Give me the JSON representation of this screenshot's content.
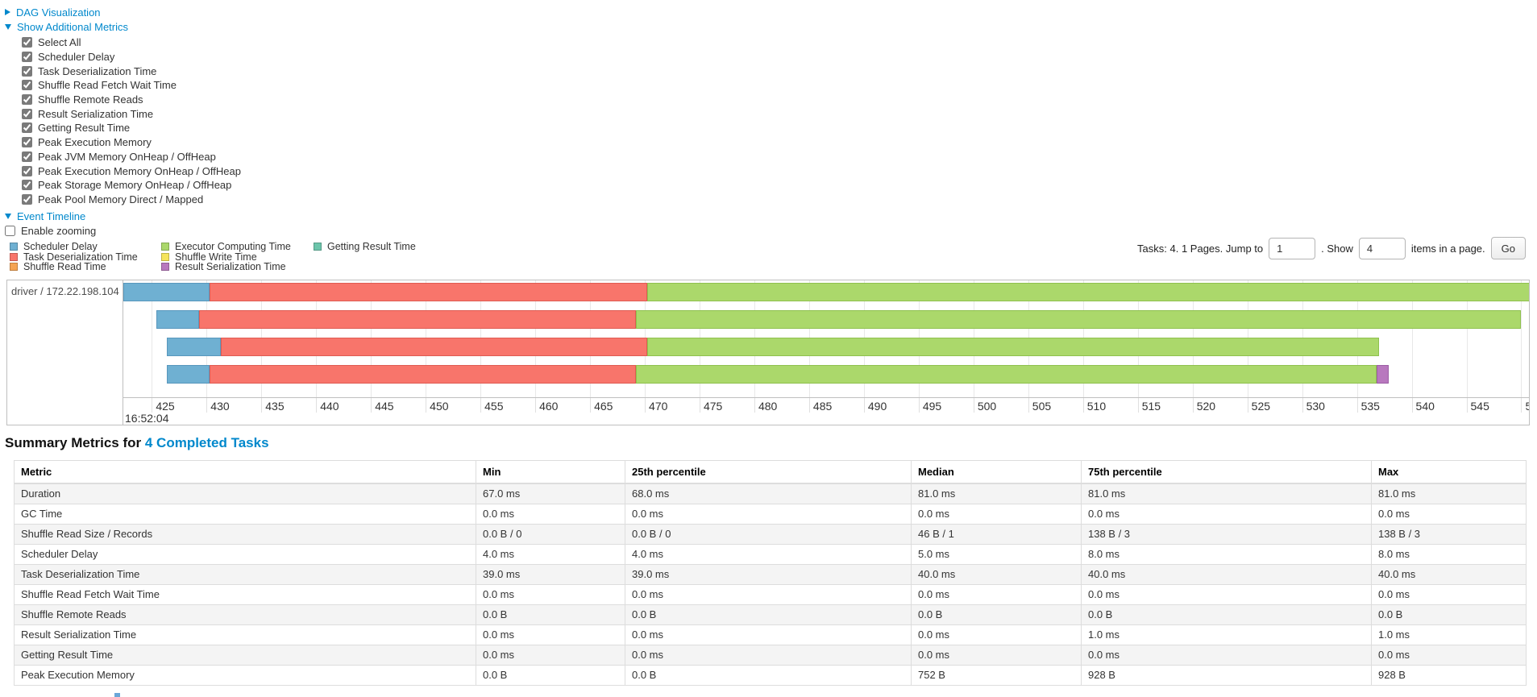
{
  "controls": {
    "dag_label": "DAG Visualization",
    "metrics_label": "Show Additional Metrics",
    "checkboxes": [
      {
        "label": "Select All",
        "checked": true
      },
      {
        "label": "Scheduler Delay",
        "checked": true
      },
      {
        "label": "Task Deserialization Time",
        "checked": true
      },
      {
        "label": "Shuffle Read Fetch Wait Time",
        "checked": true
      },
      {
        "label": "Shuffle Remote Reads",
        "checked": true
      },
      {
        "label": "Result Serialization Time",
        "checked": true
      },
      {
        "label": "Getting Result Time",
        "checked": true
      },
      {
        "label": "Peak Execution Memory",
        "checked": true
      },
      {
        "label": "Peak JVM Memory OnHeap / OffHeap",
        "checked": true
      },
      {
        "label": "Peak Execution Memory OnHeap / OffHeap",
        "checked": true
      },
      {
        "label": "Peak Storage Memory OnHeap / OffHeap",
        "checked": true
      },
      {
        "label": "Peak Pool Memory Direct / Mapped",
        "checked": true
      }
    ],
    "event_timeline_label": "Event Timeline",
    "enable_zooming": {
      "label": "Enable zooming",
      "checked": false
    }
  },
  "pagination": {
    "tasks_text": "Tasks: 4. 1 Pages. Jump to",
    "jump_value": "1",
    "show_text": ". Show",
    "show_value": "4",
    "items_text": "items in a page.",
    "go_label": "Go"
  },
  "colors": {
    "link": "#0088cc",
    "scheduler_delay": "#6FB0D2",
    "task_deserialization": "#F8756B",
    "shuffle_read": "#F5A453",
    "executor_computing": "#ABD86B",
    "shuffle_write": "#F5E45B",
    "result_serialization": "#B878BE",
    "getting_result": "#6CC5AB"
  },
  "legend": {
    "columns": [
      [
        {
          "label": "Scheduler Delay",
          "color_key": "scheduler_delay"
        },
        {
          "label": "Task Deserialization Time",
          "color_key": "task_deserialization"
        },
        {
          "label": "Shuffle Read Time",
          "color_key": "shuffle_read"
        }
      ],
      [
        {
          "label": "Executor Computing Time",
          "color_key": "executor_computing"
        },
        {
          "label": "Shuffle Write Time",
          "color_key": "shuffle_write"
        },
        {
          "label": "Result Serialization Time",
          "color_key": "result_serialization"
        }
      ],
      [
        {
          "label": "Getting Result Time",
          "color_key": "getting_result"
        }
      ]
    ]
  },
  "chart_data": {
    "type": "timeline",
    "title": "Event Timeline",
    "executor_label": "driver / 172.22.198.104",
    "x_axis": {
      "description": "milliseconds within second 16:52:04",
      "domain_start": 422.4,
      "domain_end": 550.7,
      "tick_start": 425,
      "tick_end": 550,
      "tick_step": 5,
      "major_time_label": "16:52:04"
    },
    "tasks": [
      {
        "segments": [
          {
            "name": "Scheduler Delay",
            "color_key": "scheduler_delay",
            "start": 422.4,
            "end": 430.3
          },
          {
            "name": "Task Deserialization Time",
            "color_key": "task_deserialization",
            "start": 430.3,
            "end": 470.2
          },
          {
            "name": "Executor Computing Time",
            "color_key": "executor_computing",
            "start": 470.2,
            "end": 550.8
          }
        ]
      },
      {
        "segments": [
          {
            "name": "Scheduler Delay",
            "color_key": "scheduler_delay",
            "start": 425.4,
            "end": 429.3
          },
          {
            "name": "Task Deserialization Time",
            "color_key": "task_deserialization",
            "start": 429.3,
            "end": 469.2
          },
          {
            "name": "Executor Computing Time",
            "color_key": "executor_computing",
            "start": 469.2,
            "end": 550.0
          }
        ]
      },
      {
        "segments": [
          {
            "name": "Scheduler Delay",
            "color_key": "scheduler_delay",
            "start": 426.4,
            "end": 431.3
          },
          {
            "name": "Task Deserialization Time",
            "color_key": "task_deserialization",
            "start": 431.3,
            "end": 470.2
          },
          {
            "name": "Executor Computing Time",
            "color_key": "executor_computing",
            "start": 470.2,
            "end": 537.0
          }
        ]
      },
      {
        "segments": [
          {
            "name": "Scheduler Delay",
            "color_key": "scheduler_delay",
            "start": 426.4,
            "end": 430.3
          },
          {
            "name": "Task Deserialization Time",
            "color_key": "task_deserialization",
            "start": 430.3,
            "end": 469.2
          },
          {
            "name": "Executor Computing Time",
            "color_key": "executor_computing",
            "start": 469.2,
            "end": 536.8
          },
          {
            "name": "Result Serialization Time",
            "color_key": "result_serialization",
            "start": 536.8,
            "end": 537.9
          }
        ]
      }
    ]
  },
  "summary": {
    "heading_prefix": "Summary Metrics for",
    "heading_link": "4 Completed Tasks",
    "table": {
      "headers": [
        "Metric",
        "Min",
        "25th percentile",
        "Median",
        "75th percentile",
        "Max"
      ],
      "rows": [
        [
          "Duration",
          "67.0 ms",
          "68.0 ms",
          "81.0 ms",
          "81.0 ms",
          "81.0 ms"
        ],
        [
          "GC Time",
          "0.0 ms",
          "0.0 ms",
          "0.0 ms",
          "0.0 ms",
          "0.0 ms"
        ],
        [
          "Shuffle Read Size / Records",
          "0.0 B / 0",
          "0.0 B / 0",
          "46 B / 1",
          "138 B / 3",
          "138 B / 3"
        ],
        [
          "Scheduler Delay",
          "4.0 ms",
          "4.0 ms",
          "5.0 ms",
          "8.0 ms",
          "8.0 ms"
        ],
        [
          "Task Deserialization Time",
          "39.0 ms",
          "39.0 ms",
          "40.0 ms",
          "40.0 ms",
          "40.0 ms"
        ],
        [
          "Shuffle Read Fetch Wait Time",
          "0.0 ms",
          "0.0 ms",
          "0.0 ms",
          "0.0 ms",
          "0.0 ms"
        ],
        [
          "Shuffle Remote Reads",
          "0.0 B",
          "0.0 B",
          "0.0 B",
          "0.0 B",
          "0.0 B"
        ],
        [
          "Result Serialization Time",
          "0.0 ms",
          "0.0 ms",
          "0.0 ms",
          "1.0 ms",
          "1.0 ms"
        ],
        [
          "Getting Result Time",
          "0.0 ms",
          "0.0 ms",
          "0.0 ms",
          "0.0 ms",
          "0.0 ms"
        ],
        [
          "Peak Execution Memory",
          "0.0 B",
          "0.0 B",
          "752 B",
          "928 B",
          "928 B"
        ]
      ]
    }
  }
}
